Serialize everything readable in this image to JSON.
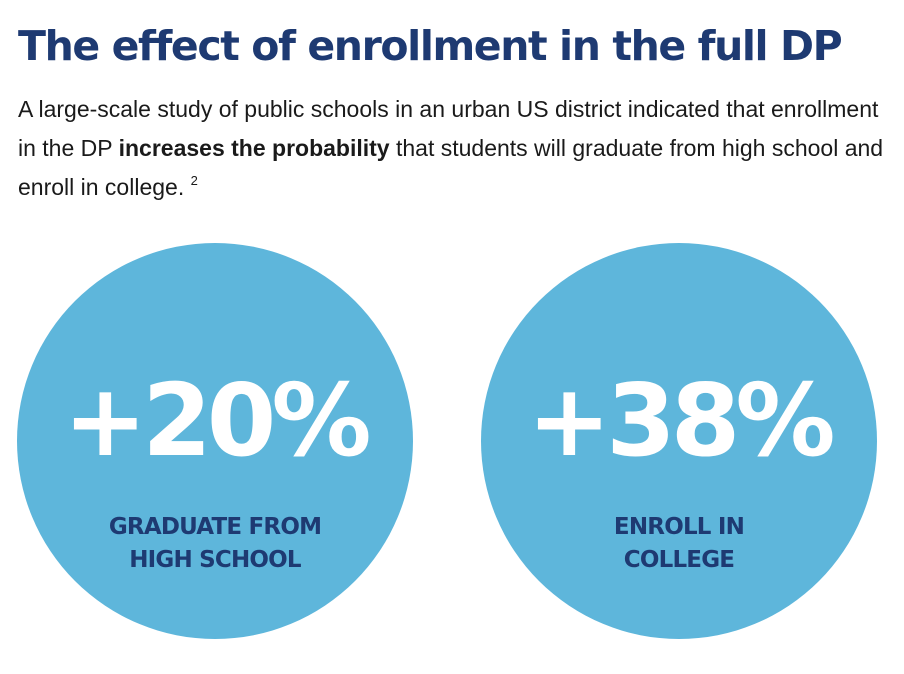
{
  "title": "The effect of enrollment in the full DP",
  "intro": {
    "part1": "A large-scale study of public schools in an urban US district indicated that enrollment in the DP ",
    "bold": "increases the probability",
    "part2": " that students will graduate from high school and enroll in college. ",
    "footnote": "2"
  },
  "stats": [
    {
      "value": "+20%",
      "label_line1": "GRADUATE FROM",
      "label_line2": "HIGH SCHOOL"
    },
    {
      "value": "+38%",
      "label_line1": "ENROLL IN",
      "label_line2": "COLLEGE"
    }
  ],
  "colors": {
    "title": "#1e3a72",
    "circle": "#5eb6db",
    "stat_value": "#ffffff",
    "stat_label": "#1e3a72",
    "body_text": "#1a1a1a"
  }
}
